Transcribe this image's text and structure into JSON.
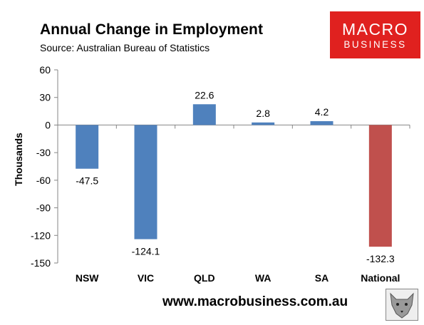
{
  "header": {
    "title": "Annual Change in Employment",
    "subtitle": "Source: Australian Bureau of Statistics"
  },
  "logo": {
    "line1": "MACRO",
    "line2": "BUSINESS"
  },
  "footer": {
    "url": "www.macrobusiness.com.au"
  },
  "colors": {
    "default_bar": "#4f81bd",
    "highlight_bar": "#c0504d",
    "logo_bg": "#e0211f"
  },
  "chart_data": {
    "type": "bar",
    "categories": [
      "NSW",
      "VIC",
      "QLD",
      "WA",
      "SA",
      "National"
    ],
    "values": [
      -47.5,
      -124.1,
      22.6,
      2.8,
      4.2,
      -132.3
    ],
    "data_labels": [
      "-47.5",
      "-124.1",
      "22.6",
      "2.8",
      "4.2",
      "-132.3"
    ],
    "bar_colors": [
      "#4f81bd",
      "#4f81bd",
      "#4f81bd",
      "#4f81bd",
      "#4f81bd",
      "#c0504d"
    ],
    "ylabel": "Thousands",
    "xlabel": "",
    "ylim": [
      -150,
      60
    ],
    "yticks": [
      60,
      30,
      0,
      -30,
      -60,
      -90,
      -120,
      -150
    ],
    "grid": false,
    "legend": "none"
  }
}
